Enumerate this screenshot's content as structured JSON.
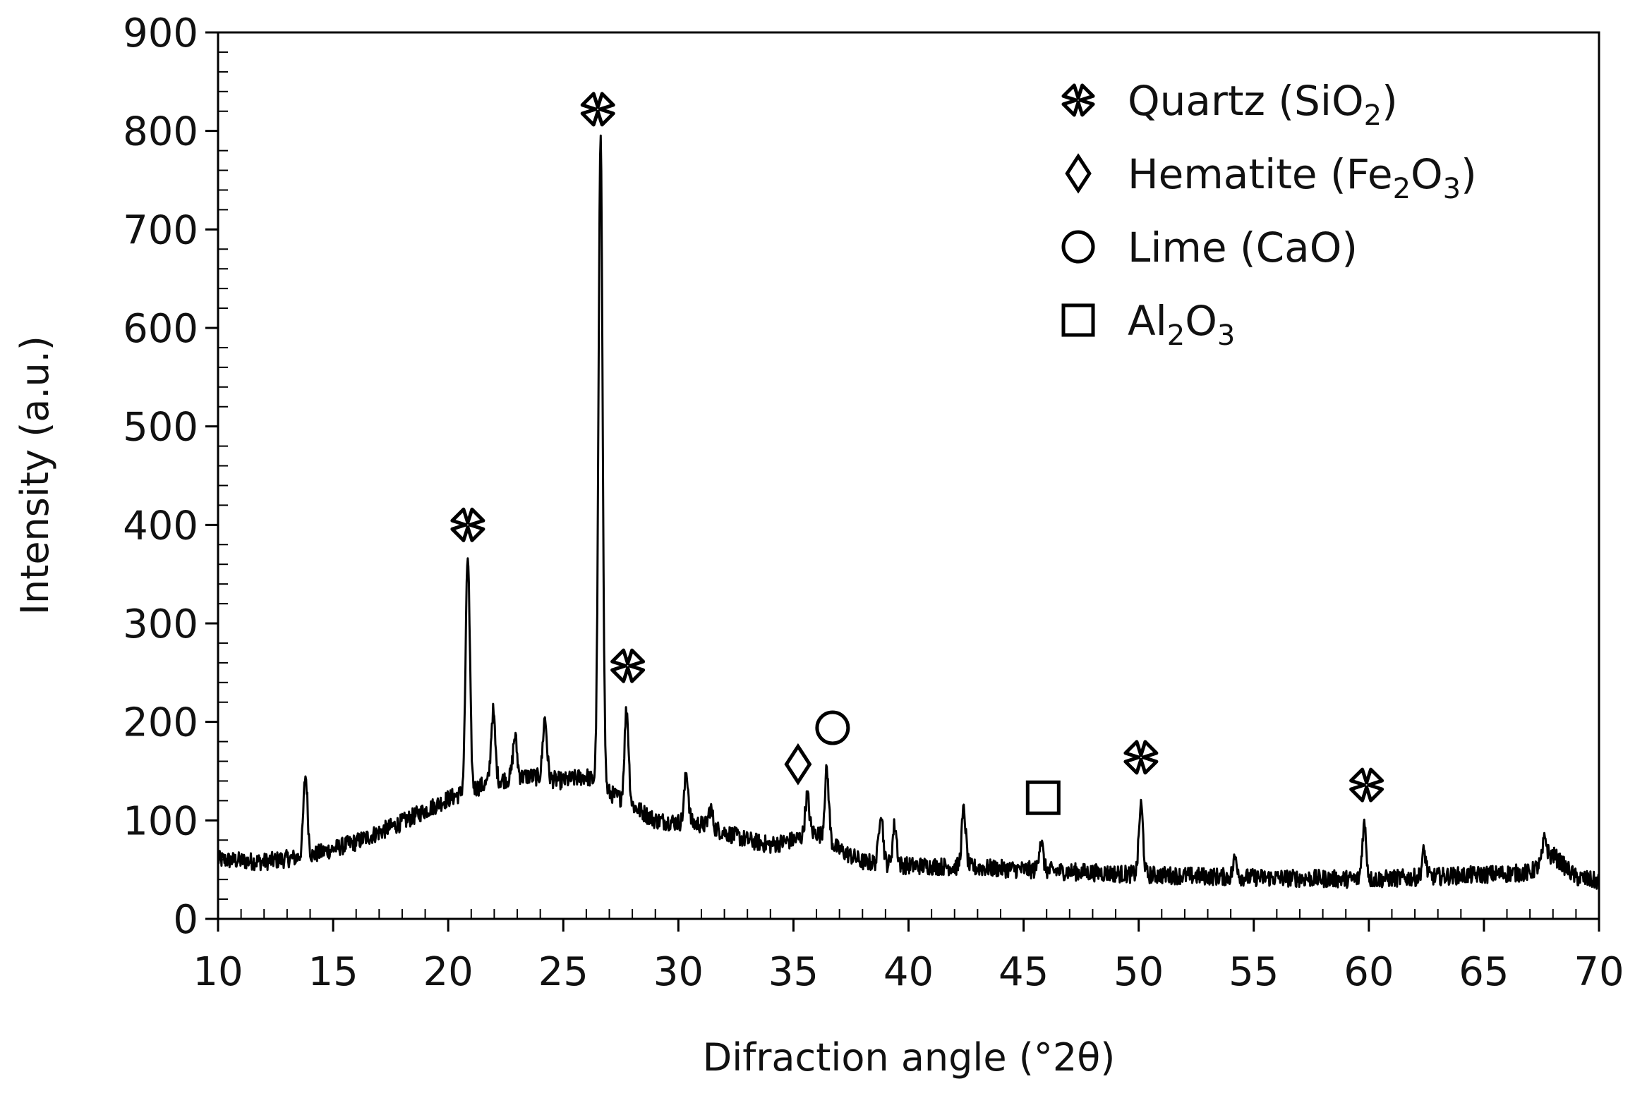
{
  "chart_data": {
    "type": "line",
    "title": "",
    "xlabel": "Difraction angle (°2θ)",
    "ylabel": "Intensity (a.u.)",
    "xlim": [
      10,
      70
    ],
    "ylim": [
      0,
      900
    ],
    "x_ticks": [
      10,
      15,
      20,
      25,
      30,
      35,
      40,
      45,
      50,
      55,
      60,
      65,
      70
    ],
    "y_ticks": [
      0,
      100,
      200,
      300,
      400,
      500,
      600,
      700,
      800,
      900
    ],
    "x_tick_labels": [
      "10",
      "15",
      "20",
      "25",
      "30",
      "35",
      "40",
      "45",
      "50",
      "55",
      "60",
      "65",
      "70"
    ],
    "y_tick_labels": [
      "0",
      "100",
      "200",
      "300",
      "400",
      "500",
      "600",
      "700",
      "800",
      "900"
    ],
    "grid": false,
    "legend_position": "top-right",
    "series": [
      {
        "name": "",
        "color": "#000000",
        "baseline": [
          [
            10,
            60
          ],
          [
            12,
            58
          ],
          [
            14,
            64
          ],
          [
            16,
            78
          ],
          [
            18,
            98
          ],
          [
            20,
            122
          ],
          [
            22,
            140
          ],
          [
            23.5,
            145
          ],
          [
            25,
            140
          ],
          [
            26,
            145
          ],
          [
            27,
            128
          ],
          [
            28,
            115
          ],
          [
            29,
            100
          ],
          [
            30,
            98
          ],
          [
            31,
            96
          ],
          [
            33,
            80
          ],
          [
            34,
            75
          ],
          [
            35,
            80
          ],
          [
            36,
            88
          ],
          [
            37,
            70
          ],
          [
            38,
            58
          ],
          [
            40,
            54
          ],
          [
            42,
            53
          ],
          [
            45,
            50
          ],
          [
            50,
            45
          ],
          [
            55,
            42
          ],
          [
            60,
            40
          ],
          [
            62,
            42
          ],
          [
            65,
            45
          ],
          [
            67,
            47
          ],
          [
            68,
            65
          ],
          [
            69,
            42
          ],
          [
            70,
            38
          ]
        ],
        "peaks": [
          [
            13.8,
            145
          ],
          [
            20.85,
            368
          ],
          [
            21.95,
            210
          ],
          [
            22.9,
            185
          ],
          [
            24.2,
            203
          ],
          [
            26.62,
            788
          ],
          [
            27.75,
            212
          ],
          [
            30.35,
            147
          ],
          [
            31.4,
            112
          ],
          [
            35.6,
            125
          ],
          [
            36.45,
            150
          ],
          [
            38.8,
            110
          ],
          [
            39.4,
            95
          ],
          [
            42.4,
            110
          ],
          [
            45.75,
            80
          ],
          [
            50.1,
            115
          ],
          [
            54.2,
            62
          ],
          [
            59.8,
            96
          ],
          [
            62.4,
            68
          ],
          [
            67.65,
            82
          ]
        ],
        "noise_amplitude": 9
      }
    ],
    "annotations": [
      {
        "marker": "cross",
        "x": 20.85,
        "y": 400
      },
      {
        "marker": "cross",
        "x": 26.5,
        "y": 822
      },
      {
        "marker": "cross",
        "x": 27.8,
        "y": 257
      },
      {
        "marker": "diamond",
        "x": 35.2,
        "y": 157
      },
      {
        "marker": "circle",
        "x": 36.7,
        "y": 194
      },
      {
        "marker": "square",
        "x": 45.85,
        "y": 123
      },
      {
        "marker": "cross",
        "x": 50.1,
        "y": 164
      },
      {
        "marker": "cross",
        "x": 59.9,
        "y": 136
      }
    ],
    "legend": [
      {
        "marker": "cross",
        "label": "Quartz (SiO",
        "sub1": "2",
        "mid": ")",
        "sub2": ""
      },
      {
        "marker": "diamond",
        "label": "Hematite (Fe",
        "sub1": "2",
        "mid": "O",
        "sub2": "3",
        "tail": ")"
      },
      {
        "marker": "circle",
        "label": "Lime (CaO)",
        "sub1": "",
        "mid": "",
        "sub2": ""
      },
      {
        "marker": "square",
        "label": "Al",
        "sub1": "2",
        "mid": "O",
        "sub2": "3"
      }
    ]
  }
}
